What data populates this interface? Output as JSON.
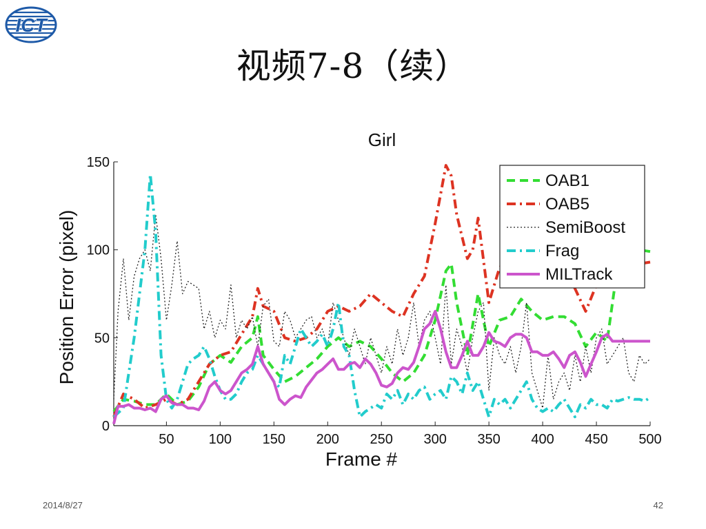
{
  "slide": {
    "title": "视频7-8（续）",
    "date": "2014/8/27",
    "page_number": "42",
    "logo_text": "ICT"
  },
  "colors": {
    "logo_blue": "#1e5aa8"
  },
  "chart_data": {
    "type": "line",
    "title": "Girl",
    "xlabel": "Frame #",
    "ylabel": "Position Error (pixel)",
    "xlim": [
      1,
      500
    ],
    "ylim": [
      0,
      150
    ],
    "xticks": [
      50,
      100,
      150,
      200,
      250,
      300,
      350,
      400,
      450,
      500
    ],
    "yticks": [
      0,
      50,
      100,
      150
    ],
    "grid": false,
    "legend_position": "top-right",
    "series": [
      {
        "name": "OAB1",
        "color": "#33dd33",
        "dash": "dashed",
        "x": [
          1,
          10,
          20,
          30,
          40,
          50,
          60,
          70,
          80,
          90,
          100,
          110,
          120,
          130,
          135,
          140,
          150,
          160,
          170,
          180,
          190,
          200,
          210,
          220,
          230,
          240,
          250,
          260,
          270,
          280,
          290,
          300,
          310,
          315,
          320,
          330,
          340,
          350,
          360,
          370,
          380,
          390,
          400,
          410,
          420,
          430,
          440,
          450,
          460,
          470,
          480,
          490,
          500
        ],
        "y": [
          8,
          15,
          14,
          12,
          12,
          18,
          12,
          14,
          22,
          35,
          40,
          36,
          45,
          50,
          62,
          40,
          32,
          25,
          28,
          33,
          38,
          45,
          50,
          45,
          48,
          45,
          38,
          30,
          25,
          30,
          40,
          60,
          88,
          92,
          70,
          40,
          75,
          45,
          60,
          62,
          72,
          65,
          60,
          62,
          62,
          58,
          45,
          53,
          48,
          92,
          98,
          100,
          99
        ]
      },
      {
        "name": "OAB5",
        "color": "#dd3322",
        "dash": "dashdot",
        "x": [
          1,
          10,
          20,
          30,
          40,
          50,
          60,
          70,
          80,
          90,
          100,
          110,
          120,
          130,
          135,
          140,
          150,
          160,
          170,
          180,
          190,
          200,
          210,
          220,
          230,
          240,
          250,
          260,
          270,
          280,
          290,
          300,
          310,
          315,
          320,
          330,
          335,
          340,
          350,
          360,
          370,
          380,
          390,
          400,
          410,
          420,
          430,
          440,
          450,
          460,
          470,
          480,
          490,
          500
        ],
        "y": [
          5,
          18,
          15,
          10,
          12,
          15,
          12,
          15,
          25,
          35,
          40,
          42,
          52,
          62,
          78,
          68,
          65,
          50,
          48,
          50,
          55,
          65,
          68,
          65,
          68,
          75,
          70,
          65,
          62,
          75,
          85,
          115,
          148,
          142,
          120,
          95,
          100,
          118,
          70,
          90,
          95,
          98,
          95,
          100,
          98,
          90,
          78,
          65,
          80,
          90,
          95,
          92,
          92,
          93
        ]
      },
      {
        "name": "SemiBoost",
        "color": "#222222",
        "dash": "dotted",
        "x": [
          1,
          5,
          10,
          15,
          20,
          25,
          30,
          35,
          40,
          45,
          50,
          55,
          60,
          65,
          70,
          75,
          80,
          85,
          90,
          95,
          100,
          105,
          110,
          115,
          120,
          125,
          130,
          135,
          140,
          145,
          150,
          155,
          160,
          165,
          170,
          175,
          180,
          185,
          190,
          195,
          200,
          205,
          210,
          215,
          220,
          225,
          230,
          235,
          240,
          245,
          250,
          255,
          260,
          265,
          270,
          275,
          280,
          285,
          290,
          295,
          300,
          305,
          310,
          315,
          320,
          325,
          330,
          335,
          340,
          345,
          350,
          355,
          360,
          365,
          370,
          375,
          380,
          385,
          390,
          395,
          400,
          405,
          410,
          415,
          420,
          425,
          430,
          435,
          440,
          445,
          450,
          455,
          460,
          465,
          470,
          475,
          480,
          485,
          490,
          495,
          500
        ],
        "y": [
          15,
          65,
          95,
          60,
          85,
          95,
          100,
          88,
          120,
          95,
          60,
          80,
          105,
          75,
          82,
          80,
          78,
          55,
          65,
          50,
          60,
          55,
          80,
          50,
          60,
          55,
          62,
          45,
          68,
          72,
          48,
          45,
          65,
          60,
          50,
          55,
          60,
          62,
          50,
          55,
          45,
          70,
          60,
          50,
          40,
          55,
          45,
          35,
          50,
          40,
          30,
          45,
          35,
          55,
          40,
          50,
          70,
          45,
          60,
          65,
          50,
          35,
          80,
          35,
          55,
          45,
          30,
          50,
          65,
          70,
          20,
          50,
          40,
          35,
          45,
          30,
          45,
          70,
          30,
          20,
          10,
          40,
          15,
          25,
          30,
          20,
          40,
          25,
          45,
          30,
          50,
          55,
          35,
          40,
          45,
          50,
          30,
          25,
          40,
          35,
          38
        ]
      },
      {
        "name": "Frag",
        "color": "#22cccc",
        "dash": "dashdot",
        "x": [
          1,
          10,
          20,
          30,
          35,
          40,
          45,
          50,
          55,
          60,
          65,
          70,
          75,
          80,
          85,
          90,
          95,
          100,
          105,
          110,
          115,
          120,
          125,
          130,
          135,
          140,
          145,
          150,
          155,
          160,
          165,
          170,
          175,
          180,
          185,
          190,
          195,
          200,
          205,
          210,
          215,
          220,
          225,
          230,
          235,
          240,
          245,
          250,
          255,
          260,
          265,
          270,
          275,
          280,
          285,
          290,
          295,
          300,
          305,
          310,
          315,
          320,
          325,
          330,
          335,
          340,
          345,
          350,
          355,
          360,
          365,
          370,
          375,
          380,
          385,
          390,
          395,
          400,
          405,
          410,
          415,
          420,
          425,
          430,
          435,
          440,
          445,
          450,
          455,
          460,
          465,
          470,
          475,
          480,
          485,
          490,
          495,
          500
        ],
        "y": [
          5,
          10,
          50,
          100,
          143,
          110,
          40,
          15,
          10,
          15,
          25,
          35,
          38,
          40,
          45,
          38,
          28,
          20,
          15,
          15,
          18,
          25,
          30,
          32,
          40,
          35,
          30,
          25,
          22,
          40,
          35,
          45,
          55,
          50,
          45,
          48,
          52,
          45,
          55,
          70,
          45,
          40,
          20,
          5,
          8,
          10,
          12,
          10,
          18,
          15,
          20,
          12,
          18,
          15,
          20,
          22,
          15,
          18,
          20,
          15,
          28,
          25,
          18,
          30,
          20,
          25,
          15,
          5,
          15,
          12,
          15,
          10,
          15,
          20,
          25,
          15,
          10,
          8,
          10,
          8,
          12,
          15,
          10,
          5,
          12,
          10,
          15,
          12,
          12,
          10,
          15,
          14,
          15,
          16,
          15,
          15,
          14,
          16
        ]
      },
      {
        "name": "MILTrack",
        "color": "#cc55cc",
        "dash": "solid",
        "x": [
          1,
          5,
          10,
          15,
          20,
          25,
          30,
          35,
          40,
          45,
          50,
          55,
          60,
          65,
          70,
          75,
          80,
          85,
          90,
          95,
          100,
          105,
          110,
          115,
          120,
          125,
          130,
          135,
          140,
          145,
          150,
          155,
          160,
          165,
          170,
          175,
          180,
          185,
          190,
          195,
          200,
          205,
          210,
          215,
          220,
          225,
          230,
          235,
          240,
          245,
          250,
          255,
          260,
          265,
          270,
          275,
          280,
          285,
          290,
          295,
          300,
          305,
          310,
          315,
          320,
          325,
          330,
          335,
          340,
          345,
          350,
          355,
          360,
          365,
          370,
          375,
          380,
          385,
          390,
          395,
          400,
          405,
          410,
          415,
          420,
          425,
          430,
          435,
          440,
          445,
          450,
          455,
          460,
          465,
          470,
          475,
          480,
          485,
          490,
          495,
          500
        ],
        "y": [
          1,
          11,
          11,
          12,
          10,
          10,
          9,
          10,
          8,
          15,
          17,
          13,
          12,
          12,
          10,
          10,
          9,
          14,
          22,
          25,
          20,
          18,
          20,
          25,
          30,
          32,
          35,
          45,
          35,
          30,
          25,
          15,
          12,
          15,
          17,
          16,
          22,
          26,
          30,
          32,
          35,
          38,
          32,
          32,
          35,
          36,
          33,
          38,
          35,
          30,
          23,
          22,
          24,
          30,
          33,
          32,
          36,
          45,
          55,
          58,
          65,
          55,
          42,
          33,
          33,
          40,
          48,
          40,
          40,
          45,
          53,
          48,
          47,
          45,
          50,
          52,
          52,
          50,
          42,
          42,
          40,
          40,
          42,
          38,
          33,
          40,
          42,
          36,
          28,
          35,
          42,
          50,
          52,
          48,
          48,
          48,
          48,
          48,
          48,
          48,
          48
        ]
      }
    ]
  }
}
